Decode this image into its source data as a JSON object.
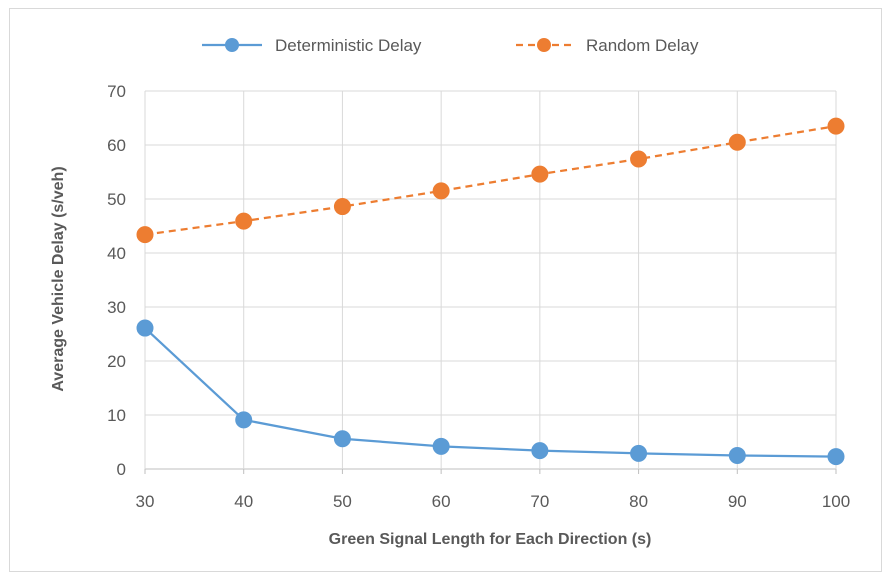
{
  "chart_data": {
    "type": "line",
    "x": [
      30,
      40,
      50,
      60,
      70,
      80,
      90,
      100
    ],
    "xlabel": "Green Signal Length for Each Direction (s)",
    "ylabel": "Average Vehicle Delay (s/veh)",
    "xlim": [
      30,
      100
    ],
    "ylim": [
      0,
      70
    ],
    "xticks": [
      "30",
      "40",
      "50",
      "60",
      "70",
      "80",
      "90",
      "100"
    ],
    "yticks": [
      "0",
      "10",
      "20",
      "30",
      "40",
      "50",
      "60",
      "70"
    ],
    "grid": true,
    "legend_position": "top",
    "series": [
      {
        "name": "Deterministic Delay",
        "values": [
          26.1,
          9.1,
          5.6,
          4.2,
          3.4,
          2.9,
          2.5,
          2.3
        ],
        "color": "#5B9BD5",
        "line_style": "solid",
        "marker": "circle"
      },
      {
        "name": "Random Delay",
        "values": [
          43.4,
          45.9,
          48.6,
          51.5,
          54.6,
          57.4,
          60.5,
          63.5
        ],
        "color": "#ED7D31",
        "line_style": "dashed",
        "marker": "circle"
      }
    ]
  }
}
